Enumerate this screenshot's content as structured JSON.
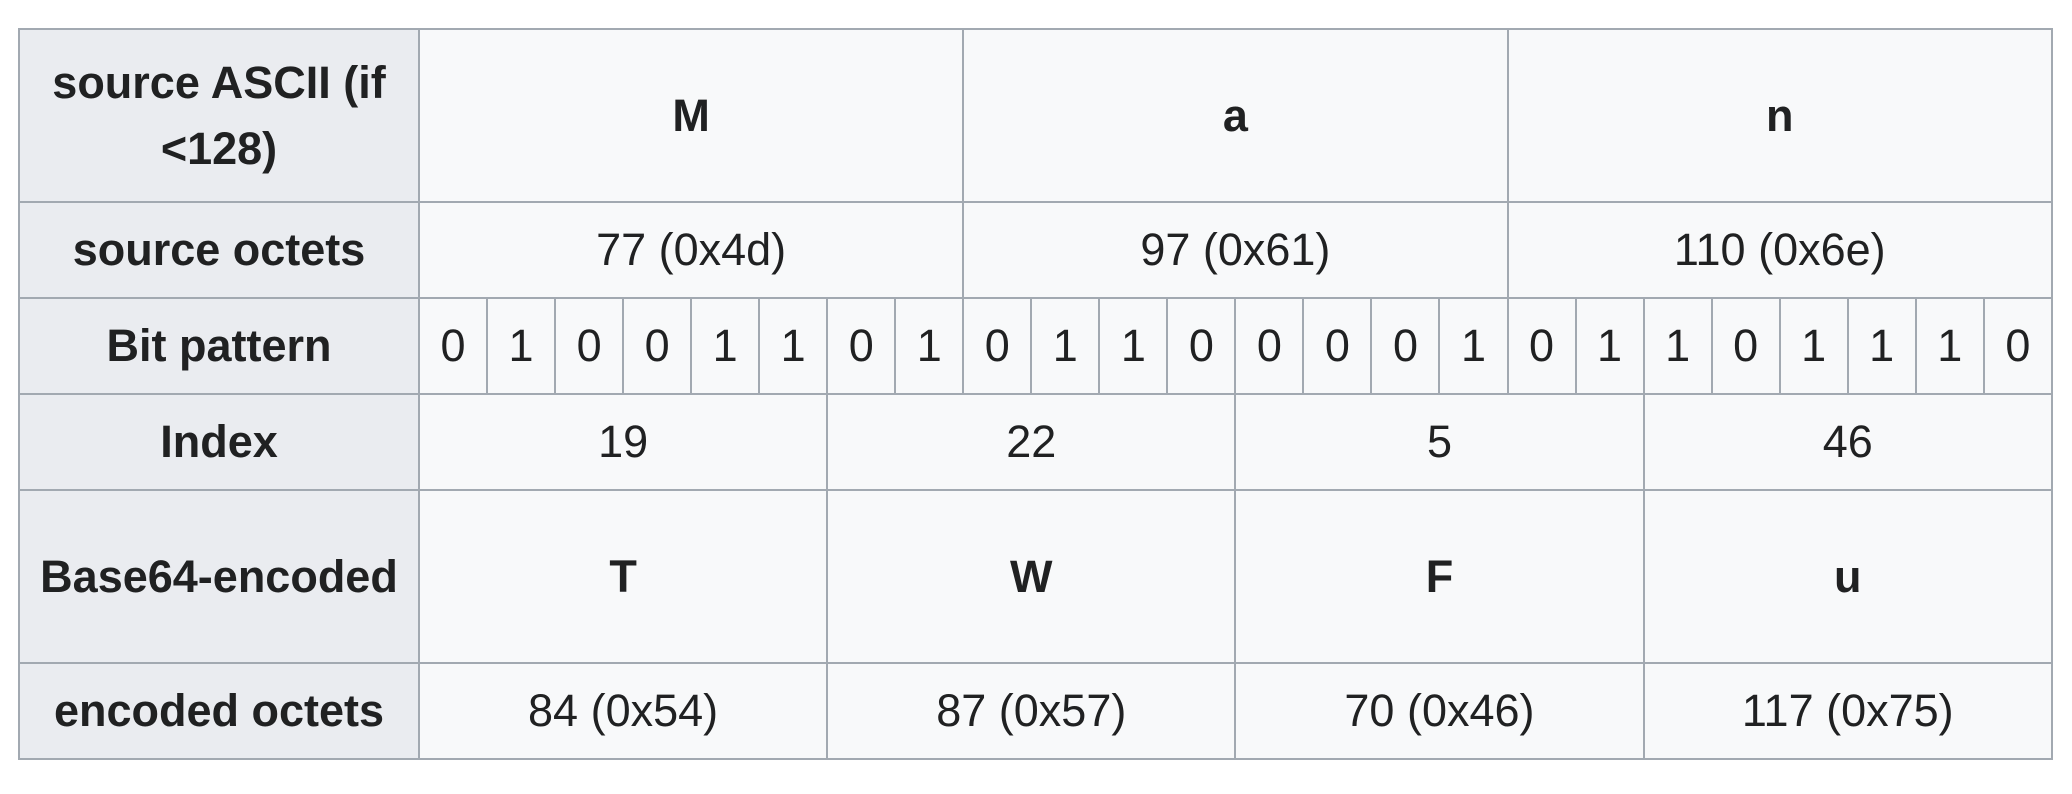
{
  "table": {
    "row_headers": {
      "source_ascii": "source ASCII (if <128)",
      "source_octets": "source octets",
      "bit_pattern": "Bit pattern",
      "index": "Index",
      "base64_encoded": "Base64-encoded",
      "encoded_octets": "encoded octets"
    },
    "source_chars": [
      "M",
      "a",
      "n"
    ],
    "source_octets": [
      "77 (0x4d)",
      "97 (0x61)",
      "110 (0x6e)"
    ],
    "bits": [
      "0",
      "1",
      "0",
      "0",
      "1",
      "1",
      "0",
      "1",
      "0",
      "1",
      "1",
      "0",
      "0",
      "0",
      "0",
      "1",
      "0",
      "1",
      "1",
      "0",
      "1",
      "1",
      "1",
      "0"
    ],
    "indices": [
      "19",
      "22",
      "5",
      "46"
    ],
    "base64_chars": [
      "T",
      "W",
      "F",
      "u"
    ],
    "encoded_octets": [
      "84 (0x54)",
      "87 (0x57)",
      "70 (0x46)",
      "117 (0x75)"
    ]
  },
  "colors": {
    "header_bg": "#eaecf0",
    "cell_bg": "#f8f9fa",
    "border": "#a2a9b1",
    "text": "#202122"
  }
}
